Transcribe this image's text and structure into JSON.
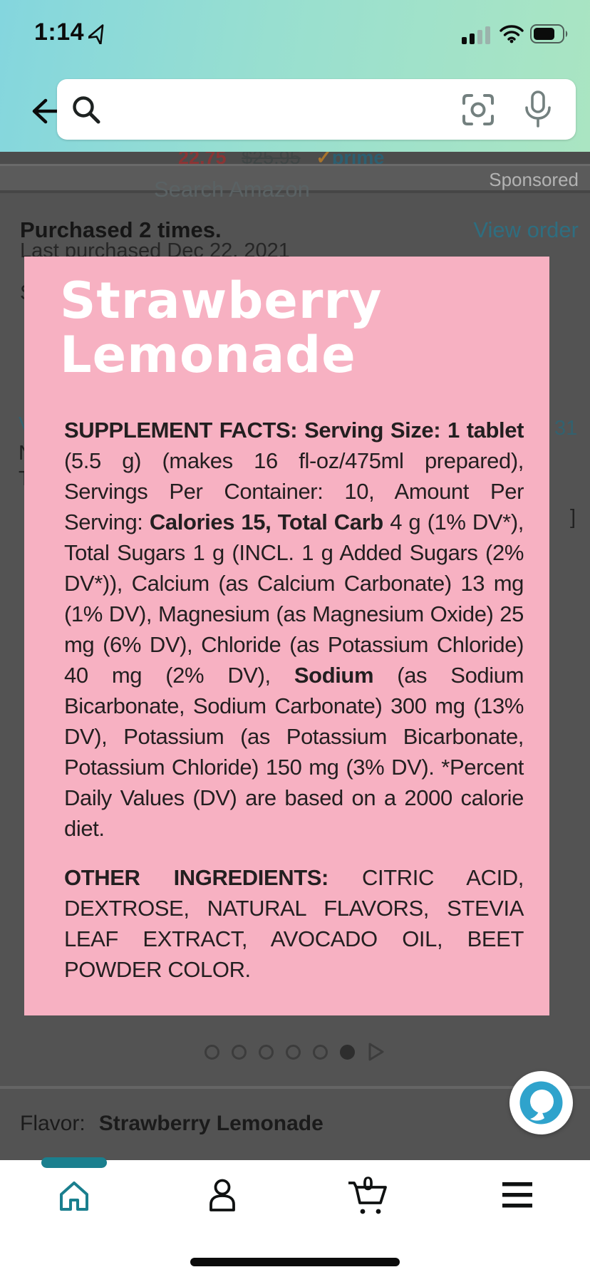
{
  "colors": {
    "amazon_teal": "#1a7f8e",
    "pink_bg": "#F7B1C2",
    "alexa_blue": "#2FA3CC",
    "header_gradient_left": "#84d6de",
    "header_gradient_right": "#aae5c2",
    "dim_overlay": "#535353"
  },
  "status_bar": {
    "time": "1:14"
  },
  "search": {
    "placeholder": "Search Amazon"
  },
  "background_page": {
    "price_current": "22.75",
    "price_original": "$25.95",
    "prime_check": "✓",
    "prime_label": "prime",
    "sponsored_label": "Sponsored",
    "purchased_text": "Purchased 2 times.",
    "view_order_label": "View order",
    "last_purchased_text": "Last purchased Dec 22, 2021",
    "fragment_s": "S",
    "fragment_v": "V",
    "fragment_n": "N",
    "fragment_t": "T",
    "fragment_31": "31",
    "fragment_bracket": "]"
  },
  "product_image": {
    "title_line1": "Strawberry",
    "title_line2": "Lemonade",
    "supplement_facts_segments": [
      {
        "text": "SUPPLEMENT FACTS:  Serving Size: 1 tablet",
        "bold": true
      },
      {
        "text": " (5.5 g) (makes 16 fl-oz/475ml prepared), Servings Per Container: 10, Amount Per Serving: ",
        "bold": false
      },
      {
        "text": "Calories 15, Total Carb",
        "bold": true
      },
      {
        "text": " 4 g (1% DV*), Total Sugars 1 g (INCL. 1 g Added Sugars (2% DV*)), Calcium (as Calcium Carbonate) 13 mg (1% DV), Magnesium (as Magnesium Oxide) 25 mg (6% DV), Chloride (as Potassium Chloride) 40 mg (2% DV), ",
        "bold": false
      },
      {
        "text": "Sodium",
        "bold": true
      },
      {
        "text": " (as Sodium Bicarbonate, Sodium Carbonate) 300 mg (13% DV), Potassium (as Potassium Bicarbonate, Potassium Chloride) 150 mg (3% DV). *Percent Daily Values (DV) are based on a 2000 calorie diet.",
        "bold": false
      }
    ],
    "other_ingredients_segments": [
      {
        "text": "OTHER INGREDIENTS:",
        "bold": true
      },
      {
        "text": " CITRIC ACID, DEXTROSE, NATURAL FLAVORS, STEVIA LEAF EXTRACT, AVOCADO OIL, BEET POWDER COLOR.",
        "bold": false
      }
    ]
  },
  "carousel": {
    "dots_total": 6,
    "active_index": 5
  },
  "flavor_row": {
    "label": "Flavor:",
    "value": "Strawberry Lemonade"
  },
  "bottom_nav": {
    "cart_count": "0"
  }
}
